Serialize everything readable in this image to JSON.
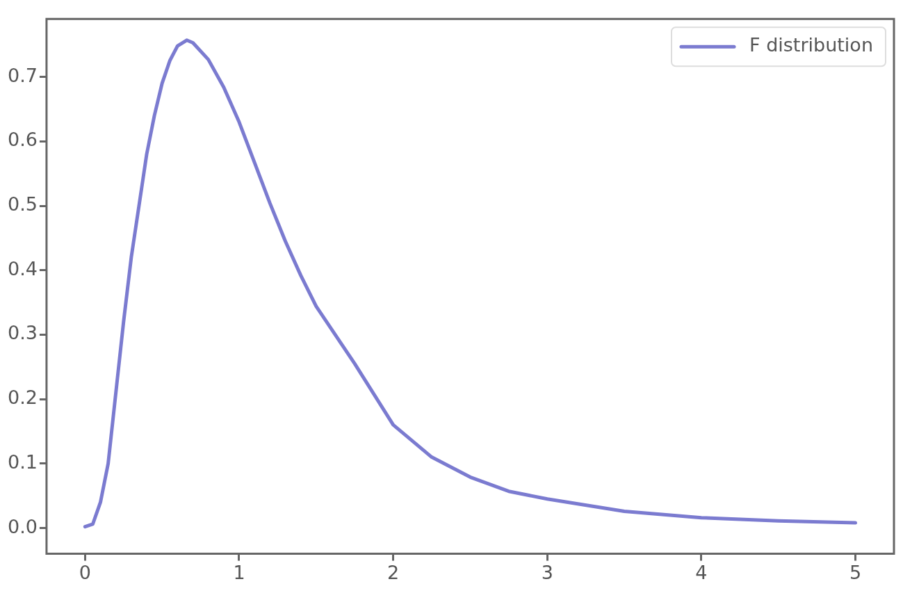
{
  "chart_data": {
    "type": "line",
    "legend": "top right",
    "marker": "none",
    "line_style": "solid",
    "grid": false,
    "xlim": [
      -0.25,
      5.25
    ],
    "xticks": [
      0,
      1,
      2,
      3,
      4,
      5
    ],
    "ylim": [
      -0.04,
      0.79
    ],
    "yticks": [
      {
        "value": 0,
        "label": "0.0"
      },
      0.1,
      0.2,
      0.3,
      0.4,
      0.5,
      0.6,
      0.7
    ],
    "series": [
      {
        "name": "F distribution",
        "color": "#7b7bd0",
        "x": [
          0,
          0.05,
          0.1,
          0.15,
          0.2,
          0.25,
          0.3,
          0.35,
          0.4,
          0.45,
          0.5,
          0.55,
          0.6,
          0.66,
          0.7,
          0.8,
          0.9,
          1.0,
          1.1,
          1.2,
          1.3,
          1.4,
          1.5,
          1.75,
          2.0,
          2.25,
          2.5,
          2.75,
          3.0,
          3.5,
          4.0,
          4.5,
          5.0
        ],
        "values": [
          0.002,
          0.006,
          0.04,
          0.1,
          0.21,
          0.32,
          0.42,
          0.5,
          0.58,
          0.64,
          0.69,
          0.725,
          0.748,
          0.757,
          0.753,
          0.727,
          0.684,
          0.63,
          0.567,
          0.504,
          0.445,
          0.392,
          0.344,
          0.255,
          0.16,
          0.11,
          0.079,
          0.057,
          0.045,
          0.026,
          0.016,
          0.011,
          0.008
        ]
      }
    ]
  }
}
